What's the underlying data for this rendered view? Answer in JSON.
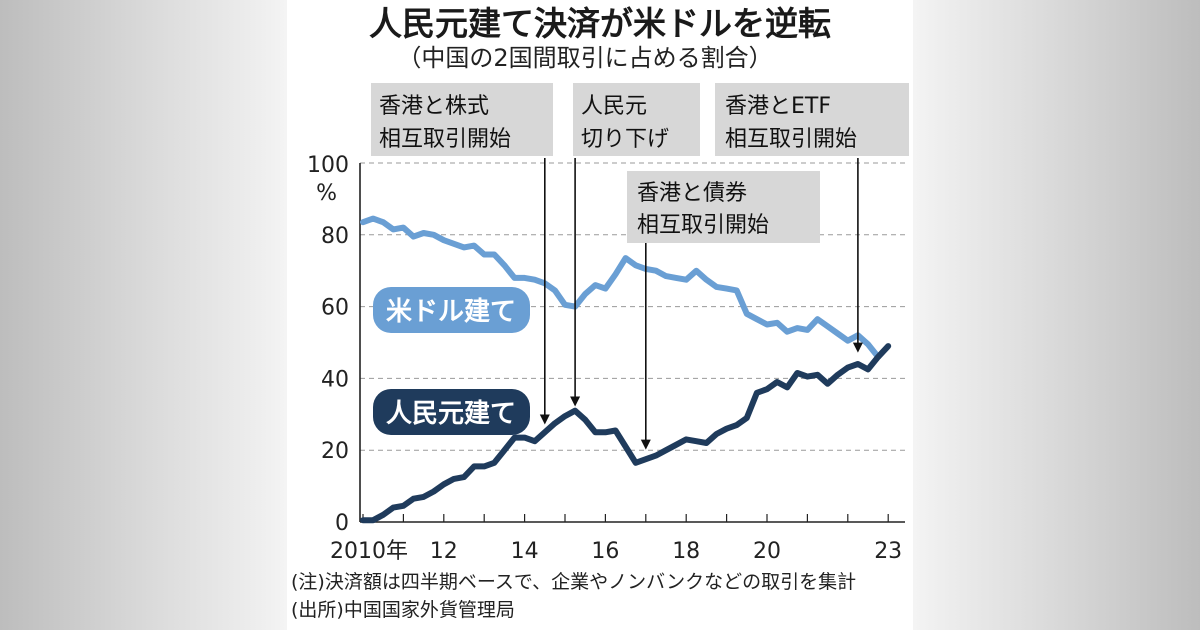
{
  "chart_data": {
    "type": "line",
    "title": "人民元建て決済が米ドルを逆転",
    "subtitle": "（中国の2国間取引に占める割合）",
    "ylabel": "%",
    "y_top_label": "100",
    "ylim": [
      0,
      100
    ],
    "yticks": [
      0,
      20,
      40,
      60,
      80
    ],
    "xlim": [
      2010.0,
      2023.4
    ],
    "x_tick_labels": [
      {
        "x": 2010.0,
        "label": "2010年"
      },
      {
        "x": 2012.0,
        "label": "12"
      },
      {
        "x": 2014.0,
        "label": "14"
      },
      {
        "x": 2016.0,
        "label": "16"
      },
      {
        "x": 2018.0,
        "label": "18"
      },
      {
        "x": 2020.0,
        "label": "20"
      },
      {
        "x": 2023.0,
        "label": "23"
      }
    ],
    "series": [
      {
        "name": "米ドル建て",
        "label": "米ドル建て",
        "color": "#6a9fd4",
        "points": [
          [
            2010.0,
            83.5
          ],
          [
            2010.25,
            84.5
          ],
          [
            2010.5,
            83.5
          ],
          [
            2010.75,
            81.5
          ],
          [
            2011.0,
            82.0
          ],
          [
            2011.25,
            79.5
          ],
          [
            2011.5,
            80.5
          ],
          [
            2011.75,
            80.0
          ],
          [
            2012.0,
            78.5
          ],
          [
            2012.25,
            77.5
          ],
          [
            2012.5,
            76.5
          ],
          [
            2012.75,
            77.0
          ],
          [
            2013.0,
            74.5
          ],
          [
            2013.25,
            74.5
          ],
          [
            2013.5,
            71.5
          ],
          [
            2013.75,
            68.0
          ],
          [
            2014.0,
            68.0
          ],
          [
            2014.25,
            67.5
          ],
          [
            2014.5,
            66.5
          ],
          [
            2014.75,
            64.5
          ],
          [
            2015.0,
            60.5
          ],
          [
            2015.25,
            60.0
          ],
          [
            2015.5,
            63.5
          ],
          [
            2015.75,
            66.0
          ],
          [
            2016.0,
            65.0
          ],
          [
            2016.25,
            69.0
          ],
          [
            2016.5,
            73.5
          ],
          [
            2016.75,
            71.5
          ],
          [
            2017.0,
            70.5
          ],
          [
            2017.25,
            70.0
          ],
          [
            2017.5,
            68.5
          ],
          [
            2017.75,
            68.0
          ],
          [
            2018.0,
            67.5
          ],
          [
            2018.25,
            70.0
          ],
          [
            2018.5,
            67.5
          ],
          [
            2018.75,
            65.5
          ],
          [
            2019.0,
            65.0
          ],
          [
            2019.25,
            64.5
          ],
          [
            2019.5,
            58.0
          ],
          [
            2019.75,
            56.5
          ],
          [
            2020.0,
            55.0
          ],
          [
            2020.25,
            55.5
          ],
          [
            2020.5,
            53.0
          ],
          [
            2020.75,
            54.0
          ],
          [
            2021.0,
            53.5
          ],
          [
            2021.25,
            56.5
          ],
          [
            2021.5,
            54.5
          ],
          [
            2021.75,
            52.5
          ],
          [
            2022.0,
            50.5
          ],
          [
            2022.25,
            52.0
          ],
          [
            2022.5,
            49.5
          ],
          [
            2022.75,
            46.0
          ]
        ]
      },
      {
        "name": "人民元建て",
        "label": "人民元建て",
        "color": "#1f3b5c",
        "points": [
          [
            2010.0,
            0.5
          ],
          [
            2010.25,
            0.5
          ],
          [
            2010.5,
            2.0
          ],
          [
            2010.75,
            4.0
          ],
          [
            2011.0,
            4.5
          ],
          [
            2011.25,
            6.5
          ],
          [
            2011.5,
            7.0
          ],
          [
            2011.75,
            8.5
          ],
          [
            2012.0,
            10.5
          ],
          [
            2012.25,
            12.0
          ],
          [
            2012.5,
            12.5
          ],
          [
            2012.75,
            15.5
          ],
          [
            2013.0,
            15.5
          ],
          [
            2013.25,
            16.5
          ],
          [
            2013.5,
            20.0
          ],
          [
            2013.75,
            23.5
          ],
          [
            2014.0,
            23.5
          ],
          [
            2014.25,
            22.5
          ],
          [
            2014.5,
            25.0
          ],
          [
            2014.75,
            27.5
          ],
          [
            2015.0,
            29.5
          ],
          [
            2015.25,
            31.0
          ],
          [
            2015.5,
            28.5
          ],
          [
            2015.75,
            25.0
          ],
          [
            2016.0,
            25.0
          ],
          [
            2016.25,
            25.5
          ],
          [
            2016.5,
            21.0
          ],
          [
            2016.75,
            16.5
          ],
          [
            2017.0,
            17.5
          ],
          [
            2017.25,
            18.5
          ],
          [
            2017.5,
            20.0
          ],
          [
            2017.75,
            21.5
          ],
          [
            2018.0,
            23.0
          ],
          [
            2018.25,
            22.5
          ],
          [
            2018.5,
            22.0
          ],
          [
            2018.75,
            24.5
          ],
          [
            2019.0,
            26.0
          ],
          [
            2019.25,
            27.0
          ],
          [
            2019.5,
            29.0
          ],
          [
            2019.75,
            36.0
          ],
          [
            2020.0,
            37.0
          ],
          [
            2020.25,
            39.0
          ],
          [
            2020.5,
            37.5
          ],
          [
            2020.75,
            41.5
          ],
          [
            2021.0,
            40.5
          ],
          [
            2021.25,
            41.0
          ],
          [
            2021.5,
            38.5
          ],
          [
            2021.75,
            41.0
          ],
          [
            2022.0,
            43.0
          ],
          [
            2022.25,
            44.0
          ],
          [
            2022.5,
            42.5
          ],
          [
            2022.75,
            46.0
          ],
          [
            2023.0,
            49.0
          ]
        ]
      }
    ],
    "annotations": [
      {
        "lines": [
          "香港と株式",
          "相互取引開始"
        ],
        "x": 2014.5,
        "y": 25.5
      },
      {
        "lines": [
          "人民元",
          "切り下げ"
        ],
        "x": 2015.25,
        "y": 30.5
      },
      {
        "lines": [
          "香港と債券",
          "相互取引開始"
        ],
        "x": 2017.0,
        "y": 18.5
      },
      {
        "lines": [
          "香港とETF",
          "相互取引開始"
        ],
        "x": 2022.25,
        "y": 45.5
      }
    ]
  },
  "notes": {
    "note": "(注)決済額は四半期ベースで、企業やノンバンクなどの取引を集計",
    "source": "(出所)中国国家外貨管理局"
  }
}
